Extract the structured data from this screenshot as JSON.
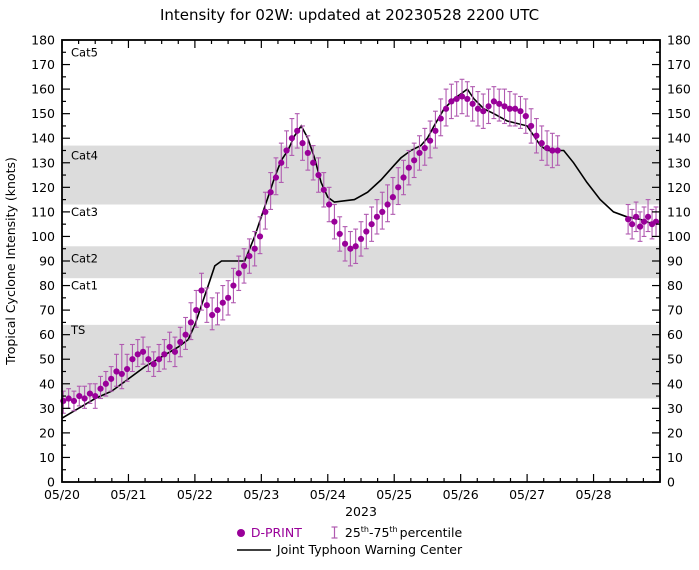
{
  "chart_data": {
    "type": "scatter",
    "title": "Intensity for 02W: updated at 20230528 2200 UTC",
    "x_axis": {
      "min": 0,
      "max": 9,
      "minor_step": 0.25,
      "tick_days": [
        0,
        1,
        2,
        3,
        4,
        5,
        6,
        7,
        8
      ],
      "tick_labels": [
        "05/20",
        "05/21",
        "05/22",
        "05/23",
        "05/24",
        "05/25",
        "05/26",
        "05/27",
        "05/28"
      ],
      "year_label": "2023"
    },
    "y_axis": {
      "min": 0,
      "max": 180,
      "tick_step": 10,
      "minor_step": 5,
      "label": "Tropical Cyclone Intensity (knots)"
    },
    "band_color": "#dcdcdc",
    "bands": [
      {
        "from": 34,
        "to": 64
      },
      {
        "from": 83,
        "to": 96
      },
      {
        "from": 113,
        "to": 137
      }
    ],
    "category_labels": [
      {
        "label": "Cat5",
        "y": 175
      },
      {
        "label": "Cat4",
        "y": 133
      },
      {
        "label": "Cat3",
        "y": 110
      },
      {
        "label": "Cat2",
        "y": 91
      },
      {
        "label": "Cat1",
        "y": 80
      },
      {
        "label": "TS",
        "y": 62
      }
    ],
    "series": {
      "dprint": {
        "name": "D-PRINT",
        "kind": "scatter",
        "color": "#990099",
        "errorbar_color": "#b05ab0",
        "points": [
          [
            0.02,
            33,
            28,
            37
          ],
          [
            0.1,
            34,
            30,
            38
          ],
          [
            0.18,
            33,
            29,
            37
          ],
          [
            0.26,
            35,
            31,
            39
          ],
          [
            0.34,
            34,
            30,
            39
          ],
          [
            0.42,
            36,
            32,
            40
          ],
          [
            0.5,
            35,
            30,
            40
          ],
          [
            0.58,
            38,
            34,
            43
          ],
          [
            0.66,
            40,
            35,
            45
          ],
          [
            0.74,
            42,
            37,
            47
          ],
          [
            0.82,
            45,
            39,
            52
          ],
          [
            0.9,
            44,
            38,
            56
          ],
          [
            0.98,
            46,
            41,
            52
          ],
          [
            1.06,
            50,
            45,
            56
          ],
          [
            1.14,
            52,
            47,
            58
          ],
          [
            1.22,
            53,
            48,
            59
          ],
          [
            1.3,
            50,
            45,
            55
          ],
          [
            1.38,
            48,
            43,
            53
          ],
          [
            1.46,
            50,
            45,
            56
          ],
          [
            1.54,
            52,
            46,
            58
          ],
          [
            1.62,
            55,
            49,
            61
          ],
          [
            1.7,
            53,
            47,
            59
          ],
          [
            1.78,
            57,
            51,
            63
          ],
          [
            1.86,
            60,
            54,
            67
          ],
          [
            1.94,
            65,
            58,
            73
          ],
          [
            2.02,
            70,
            63,
            78
          ],
          [
            2.1,
            78,
            70,
            85
          ],
          [
            2.18,
            72,
            65,
            79
          ],
          [
            2.26,
            68,
            62,
            75
          ],
          [
            2.34,
            70,
            64,
            77
          ],
          [
            2.42,
            73,
            66,
            80
          ],
          [
            2.5,
            75,
            68,
            82
          ],
          [
            2.58,
            80,
            73,
            87
          ],
          [
            2.66,
            85,
            78,
            92
          ],
          [
            2.74,
            88,
            81,
            95
          ],
          [
            2.82,
            92,
            85,
            99
          ],
          [
            2.9,
            95,
            88,
            102
          ],
          [
            2.98,
            100,
            93,
            108
          ],
          [
            3.06,
            110,
            103,
            118
          ],
          [
            3.14,
            118,
            111,
            126
          ],
          [
            3.22,
            124,
            117,
            132
          ],
          [
            3.3,
            130,
            122,
            138
          ],
          [
            3.38,
            135,
            128,
            143
          ],
          [
            3.46,
            140,
            133,
            148
          ],
          [
            3.54,
            143,
            136,
            150
          ],
          [
            3.62,
            138,
            131,
            145
          ],
          [
            3.7,
            134,
            127,
            141
          ],
          [
            3.78,
            130,
            123,
            137
          ],
          [
            3.86,
            125,
            118,
            132
          ],
          [
            3.94,
            119,
            112,
            126
          ],
          [
            4.02,
            113,
            106,
            120
          ],
          [
            4.1,
            106,
            99,
            113
          ],
          [
            4.18,
            101,
            94,
            108
          ],
          [
            4.26,
            97,
            90,
            104
          ],
          [
            4.34,
            95,
            88,
            102
          ],
          [
            4.42,
            96,
            89,
            103
          ],
          [
            4.5,
            99,
            92,
            106
          ],
          [
            4.58,
            102,
            95,
            109
          ],
          [
            4.66,
            105,
            98,
            112
          ],
          [
            4.74,
            108,
            101,
            115
          ],
          [
            4.82,
            110,
            103,
            118
          ],
          [
            4.9,
            113,
            106,
            121
          ],
          [
            4.98,
            116,
            109,
            124
          ],
          [
            5.06,
            120,
            113,
            128
          ],
          [
            5.14,
            124,
            117,
            131
          ],
          [
            5.22,
            128,
            121,
            135
          ],
          [
            5.3,
            131,
            124,
            138
          ],
          [
            5.38,
            134,
            127,
            141
          ],
          [
            5.46,
            136,
            129,
            144
          ],
          [
            5.54,
            139,
            132,
            147
          ],
          [
            5.62,
            143,
            136,
            151
          ],
          [
            5.7,
            148,
            141,
            156
          ],
          [
            5.78,
            152,
            145,
            160
          ],
          [
            5.86,
            155,
            148,
            162
          ],
          [
            5.94,
            156,
            149,
            163
          ],
          [
            6.02,
            157,
            150,
            164
          ],
          [
            6.1,
            156,
            149,
            163
          ],
          [
            6.18,
            154,
            147,
            161
          ],
          [
            6.26,
            152,
            145,
            159
          ],
          [
            6.34,
            151,
            144,
            158
          ],
          [
            6.42,
            153,
            146,
            160
          ],
          [
            6.5,
            155,
            148,
            161
          ],
          [
            6.58,
            154,
            147,
            160
          ],
          [
            6.66,
            153,
            146,
            160
          ],
          [
            6.74,
            152,
            145,
            159
          ],
          [
            6.82,
            152,
            145,
            158
          ],
          [
            6.9,
            151,
            144,
            157
          ],
          [
            6.98,
            149,
            142,
            156
          ],
          [
            7.06,
            145,
            138,
            152
          ],
          [
            7.14,
            141,
            134,
            148
          ],
          [
            7.22,
            138,
            131,
            145
          ],
          [
            7.3,
            136,
            129,
            143
          ],
          [
            7.38,
            135,
            128,
            142
          ],
          [
            7.46,
            135,
            129,
            141
          ],
          [
            8.52,
            107,
            101,
            113
          ],
          [
            8.58,
            105,
            99,
            111
          ],
          [
            8.64,
            108,
            102,
            114
          ],
          [
            8.7,
            104,
            98,
            110
          ],
          [
            8.76,
            106,
            100,
            112
          ],
          [
            8.82,
            108,
            102,
            115
          ],
          [
            8.88,
            105,
            99,
            111
          ],
          [
            8.94,
            106,
            100,
            112
          ]
        ]
      },
      "jtwc": {
        "name": "Joint Typhoon Warning Center",
        "kind": "line",
        "color": "#000000",
        "points": [
          [
            0.0,
            26
          ],
          [
            0.25,
            30
          ],
          [
            0.5,
            34
          ],
          [
            0.75,
            37
          ],
          [
            1.0,
            42
          ],
          [
            1.25,
            47
          ],
          [
            1.5,
            51
          ],
          [
            1.75,
            55
          ],
          [
            1.9,
            58
          ],
          [
            2.0,
            64
          ],
          [
            2.1,
            72
          ],
          [
            2.2,
            80
          ],
          [
            2.3,
            88
          ],
          [
            2.4,
            90
          ],
          [
            2.75,
            90
          ],
          [
            2.9,
            100
          ],
          [
            3.0,
            108
          ],
          [
            3.1,
            116
          ],
          [
            3.2,
            124
          ],
          [
            3.3,
            131
          ],
          [
            3.4,
            135
          ],
          [
            3.5,
            141
          ],
          [
            3.6,
            145
          ],
          [
            3.7,
            140
          ],
          [
            3.8,
            132
          ],
          [
            3.9,
            122
          ],
          [
            4.0,
            116
          ],
          [
            4.1,
            114
          ],
          [
            4.4,
            115
          ],
          [
            4.6,
            118
          ],
          [
            4.8,
            123
          ],
          [
            5.0,
            129
          ],
          [
            5.1,
            132
          ],
          [
            5.25,
            135
          ],
          [
            5.4,
            137
          ],
          [
            5.5,
            140
          ],
          [
            5.6,
            145
          ],
          [
            5.75,
            152
          ],
          [
            5.9,
            156
          ],
          [
            6.0,
            158
          ],
          [
            6.1,
            160
          ],
          [
            6.2,
            156
          ],
          [
            6.35,
            152
          ],
          [
            6.5,
            150
          ],
          [
            6.7,
            147
          ],
          [
            7.0,
            145
          ],
          [
            7.1,
            141
          ],
          [
            7.2,
            137
          ],
          [
            7.3,
            135
          ],
          [
            7.55,
            135
          ],
          [
            7.7,
            130
          ],
          [
            7.9,
            122
          ],
          [
            8.1,
            115
          ],
          [
            8.3,
            110
          ],
          [
            8.5,
            108
          ],
          [
            8.7,
            107
          ],
          [
            8.9,
            105
          ]
        ]
      }
    }
  },
  "legend": {
    "dprint_label": "D-PRINT",
    "percentile": {
      "p1": "25",
      "sup1": "th",
      "p2": "-75",
      "sup2": "th",
      "p3": "percentile"
    },
    "jtwc_label": "Joint Typhoon Warning Center"
  }
}
